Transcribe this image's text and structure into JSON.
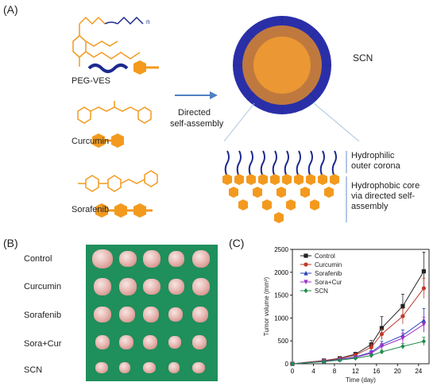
{
  "panels": {
    "a_label": "(A)",
    "b_label": "(B)",
    "c_label": "(C)"
  },
  "panel_a": {
    "molecules": [
      {
        "name": "PEG-VES"
      },
      {
        "name": "Curcumin"
      },
      {
        "name": "Sorafenib"
      }
    ],
    "arrow_label_line1": "Directed",
    "arrow_label_line2": "self-assembly",
    "nanoparticle_label": "SCN",
    "peg_subscript": "n",
    "legend": {
      "hydrophilic_line1": "Hydrophilic",
      "hydrophilic_line2": "outer corona",
      "hydrophobic_line1": "Hydrophobic core",
      "hydrophobic_line2": "via directed self-",
      "hydrophobic_line3": "assembly"
    }
  },
  "panel_b": {
    "rows": [
      "Control",
      "Curcumin",
      "Sorafenib",
      "Sora+Cur",
      "SCN"
    ]
  },
  "colors": {
    "orange": "#f39a1e",
    "navy": "#1c2a8f",
    "green": "#1f8f5c"
  },
  "chart_data": {
    "type": "line",
    "xlabel": "Time (day)",
    "ylabel": "Tumor volume (mm³)",
    "xlim": [
      0,
      26
    ],
    "ylim": [
      0,
      2500
    ],
    "xticks": [
      0,
      4,
      8,
      12,
      16,
      20,
      24
    ],
    "yticks": [
      0,
      500,
      1000,
      1500,
      2000,
      2500
    ],
    "x": [
      0,
      6,
      9,
      12,
      15,
      17,
      21,
      25
    ],
    "series": [
      {
        "name": "Control",
        "color": "#222222",
        "marker": "square",
        "values": [
          0,
          70,
          120,
          210,
          420,
          780,
          1260,
          2020
        ]
      },
      {
        "name": "Curcumin",
        "color": "#c0392b",
        "marker": "circle",
        "values": [
          0,
          65,
          110,
          190,
          360,
          650,
          1040,
          1650
        ]
      },
      {
        "name": "Sorafenib",
        "color": "#2b3fb8",
        "marker": "triangle",
        "values": [
          0,
          55,
          95,
          150,
          250,
          420,
          620,
          950
        ]
      },
      {
        "name": "Sora+Cur",
        "color": "#9b30c8",
        "marker": "triangle-down",
        "values": [
          0,
          50,
          90,
          140,
          230,
          380,
          560,
          860
        ]
      },
      {
        "name": "SCN",
        "color": "#1e8c4a",
        "marker": "diamond",
        "values": [
          0,
          45,
          80,
          120,
          180,
          260,
          380,
          490
        ]
      }
    ],
    "errors": [
      [
        0,
        15,
        25,
        40,
        90,
        250,
        260,
        420
      ],
      [
        0,
        12,
        20,
        35,
        70,
        110,
        170,
        220
      ],
      [
        0,
        10,
        15,
        25,
        40,
        70,
        120,
        260
      ],
      [
        0,
        10,
        15,
        25,
        40,
        60,
        110,
        160
      ],
      [
        0,
        8,
        12,
        20,
        30,
        40,
        60,
        90
      ]
    ]
  }
}
